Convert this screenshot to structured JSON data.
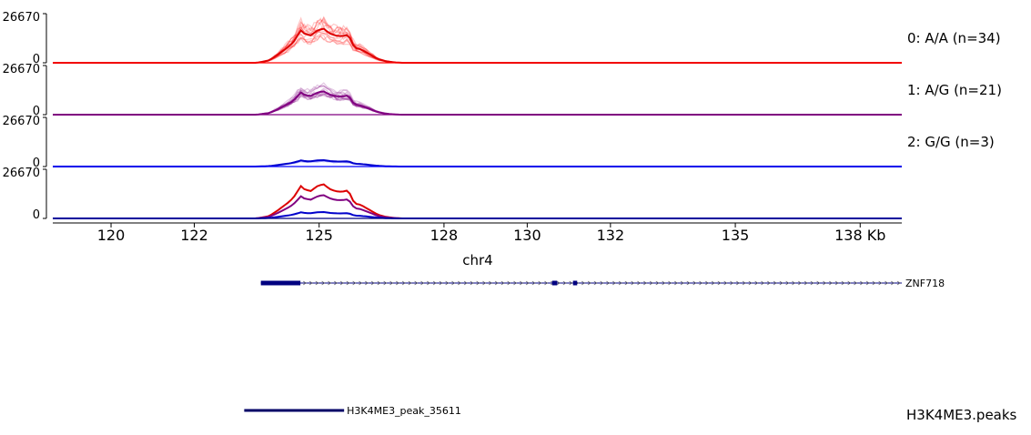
{
  "chart_data": {
    "type": "line",
    "title": "",
    "xlabel": "chr4",
    "x_unit": "Kb",
    "xlim": [
      118.6,
      139.0
    ],
    "x_ticks": [
      {
        "value": 120,
        "label": "120"
      },
      {
        "value": 122,
        "label": "122"
      },
      {
        "value": 125,
        "label": "125"
      },
      {
        "value": 128,
        "label": "128"
      },
      {
        "value": 130,
        "label": "130"
      },
      {
        "value": 132,
        "label": "132"
      },
      {
        "value": 135,
        "label": "135"
      },
      {
        "value": 138,
        "label": "138 Kb"
      }
    ],
    "ylim": [
      0,
      26670
    ],
    "y_tick_labels": [
      "26670",
      "0"
    ],
    "panels": [
      {
        "name": "0: A/A (n=34)",
        "color": "#ff0000",
        "mean_color": "#dd0000",
        "scale": 0.85,
        "replicates": 34
      },
      {
        "name": "1: A/G (n=21)",
        "color": "#800080",
        "mean_color": "#800080",
        "scale": 0.58,
        "replicates": 21
      },
      {
        "name": "2: G/G (n=3)",
        "color": "#0000ff",
        "mean_color": "#0000cc",
        "scale": 0.16,
        "replicates": 3
      },
      {
        "name": "",
        "color": "#000000",
        "mean_color": "#000000",
        "scale": 1.0,
        "replicates": 0
      }
    ],
    "overlay_series": [
      {
        "genotype": "0: A/A (n=34)",
        "color": "#dd0000",
        "scale": 0.85
      },
      {
        "genotype": "1: A/G (n=21)",
        "color": "#800080",
        "scale": 0.58
      },
      {
        "genotype": "2: G/G (n=3)",
        "color": "#0000cc",
        "scale": 0.16
      }
    ],
    "signal_profile": {
      "x": [
        118.6,
        123.5,
        123.8,
        124.0,
        124.2,
        124.3,
        124.45,
        124.55,
        124.65,
        124.8,
        124.95,
        125.1,
        125.25,
        125.4,
        125.55,
        125.7,
        125.85,
        126.0,
        126.2,
        126.4,
        126.6,
        126.8,
        127.0,
        139.0
      ],
      "y": [
        0,
        0,
        1500,
        5000,
        9000,
        11000,
        15500,
        21000,
        18500,
        17500,
        20500,
        22000,
        18800,
        17300,
        17000,
        18000,
        9500,
        8700,
        5600,
        2500,
        1000,
        300,
        0,
        0
      ]
    },
    "gene": {
      "name": "ZNF718",
      "start": 123.6,
      "end": 139.0,
      "strand": "+",
      "exons": [
        [
          123.6,
          124.55
        ],
        [
          130.6,
          130.72
        ],
        [
          131.1,
          131.2
        ]
      ]
    },
    "peak_track": {
      "track_name": "H3K4ME3.peaks",
      "peak_name": "H3K4ME3_peak_35611",
      "start": 123.2,
      "end": 125.6
    }
  }
}
